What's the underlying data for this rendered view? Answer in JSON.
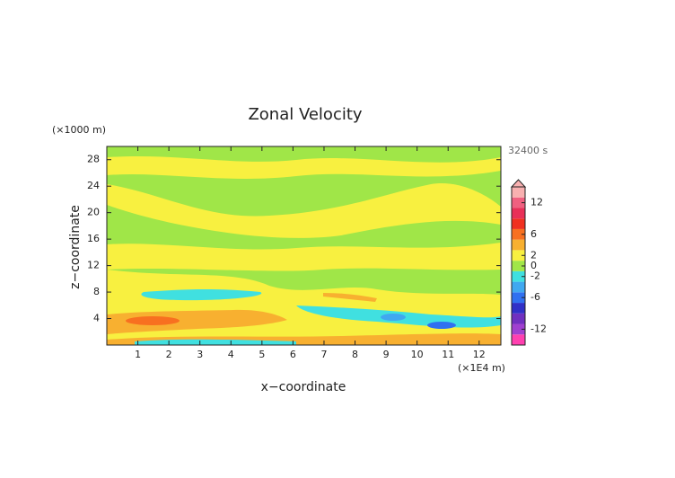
{
  "chart_data": {
    "type": "contour",
    "title": "Zonal Velocity",
    "x_label": "x−coordinate",
    "y_label": "z−coordinate",
    "x_unit": "(×1E4 m)",
    "y_unit": "(×1000 m)",
    "time_label": "32400 s",
    "xlim": [
      0,
      12.7
    ],
    "xticks": [
      1,
      2,
      3,
      4,
      5,
      6,
      7,
      8,
      9,
      10,
      11,
      12
    ],
    "ylim": [
      0,
      30
    ],
    "yticks": [
      4,
      8,
      12,
      16,
      20,
      24,
      28
    ],
    "colorbar": {
      "lim": [
        -15,
        15
      ],
      "ticks": [
        -12,
        -6,
        -2,
        0,
        2,
        6,
        12
      ],
      "levels": [
        -15,
        -13,
        -11,
        -9,
        -7,
        -5,
        -3,
        -1,
        1,
        3,
        5,
        7,
        9,
        11,
        13,
        15
      ],
      "colors": [
        "#ff40b0",
        "#a040d0",
        "#7030c0",
        "#3030c8",
        "#3070f0",
        "#40a8f0",
        "#40e0e0",
        "#a0e648",
        "#f8f040",
        "#f8b030",
        "#f87020",
        "#f03020",
        "#e83058",
        "#f06080",
        "#f8b0b0"
      ]
    }
  }
}
